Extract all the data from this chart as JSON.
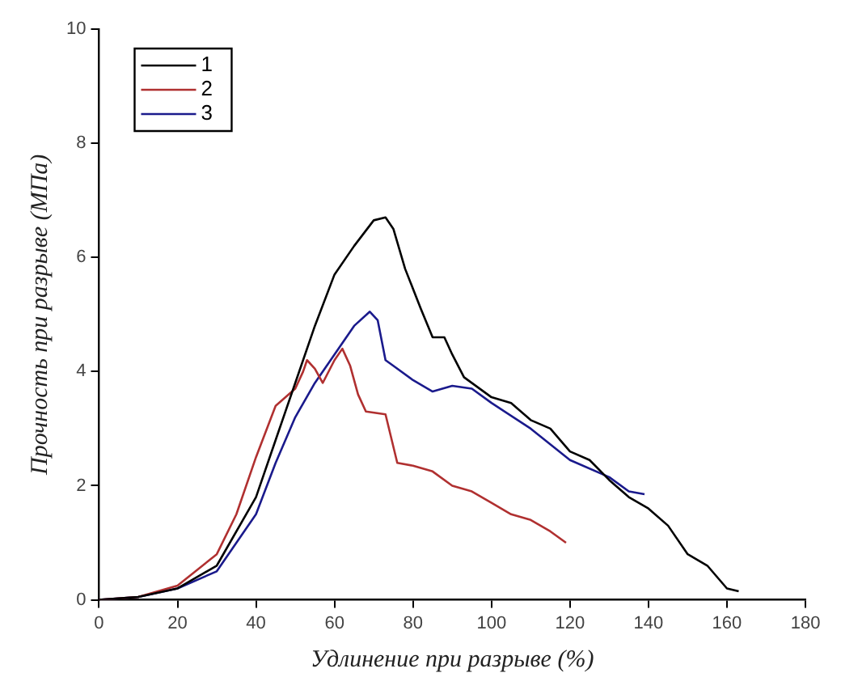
{
  "chart_data": {
    "type": "line",
    "xlabel": "Удлинение при разрыве (%)",
    "ylabel": "Прочность при разрыве (МПа)",
    "xlim": [
      0,
      180
    ],
    "xticks": [
      0,
      20,
      40,
      60,
      80,
      100,
      120,
      140,
      160,
      180
    ],
    "ylim": [
      0,
      10
    ],
    "yticks": [
      0,
      2,
      4,
      6,
      8,
      10
    ],
    "grid": false,
    "legend": "top left",
    "series": [
      {
        "name": "1",
        "color": "#000000",
        "x": [
          0,
          10,
          20,
          30,
          40,
          45,
          50,
          55,
          60,
          65,
          70,
          73,
          75,
          78,
          82,
          85,
          88,
          90,
          93,
          100,
          105,
          110,
          115,
          120,
          125,
          130,
          135,
          140,
          145,
          150,
          155,
          160,
          163
        ],
        "values": [
          0,
          0.05,
          0.2,
          0.6,
          1.8,
          2.8,
          3.8,
          4.8,
          5.7,
          6.2,
          6.65,
          6.7,
          6.5,
          5.8,
          5.1,
          4.6,
          4.6,
          4.3,
          3.9,
          3.55,
          3.45,
          3.15,
          3.0,
          2.6,
          2.45,
          2.1,
          1.8,
          1.6,
          1.3,
          0.8,
          0.6,
          0.2,
          0.15
        ]
      },
      {
        "name": "2",
        "color": "#b03030",
        "x": [
          0,
          10,
          20,
          30,
          35,
          40,
          45,
          50,
          52,
          53,
          55,
          57,
          60,
          62,
          64,
          66,
          68,
          73,
          76,
          80,
          85,
          90,
          95,
          100,
          105,
          110,
          115,
          119
        ],
        "values": [
          0,
          0.05,
          0.25,
          0.8,
          1.5,
          2.5,
          3.4,
          3.7,
          4.0,
          4.2,
          4.05,
          3.8,
          4.2,
          4.4,
          4.1,
          3.6,
          3.3,
          3.25,
          2.4,
          2.35,
          2.25,
          2.0,
          1.9,
          1.7,
          1.5,
          1.4,
          1.2,
          1.0
        ]
      },
      {
        "name": "3",
        "color": "#1a1a8c",
        "x": [
          0,
          10,
          20,
          30,
          40,
          45,
          50,
          55,
          60,
          65,
          69,
          71,
          73,
          75,
          80,
          85,
          90,
          95,
          100,
          110,
          120,
          130,
          135,
          139
        ],
        "values": [
          0,
          0.05,
          0.2,
          0.5,
          1.5,
          2.4,
          3.2,
          3.8,
          4.3,
          4.8,
          5.05,
          4.9,
          4.2,
          4.1,
          3.85,
          3.65,
          3.75,
          3.7,
          3.45,
          3.0,
          2.45,
          2.15,
          1.9,
          1.85
        ]
      }
    ]
  }
}
